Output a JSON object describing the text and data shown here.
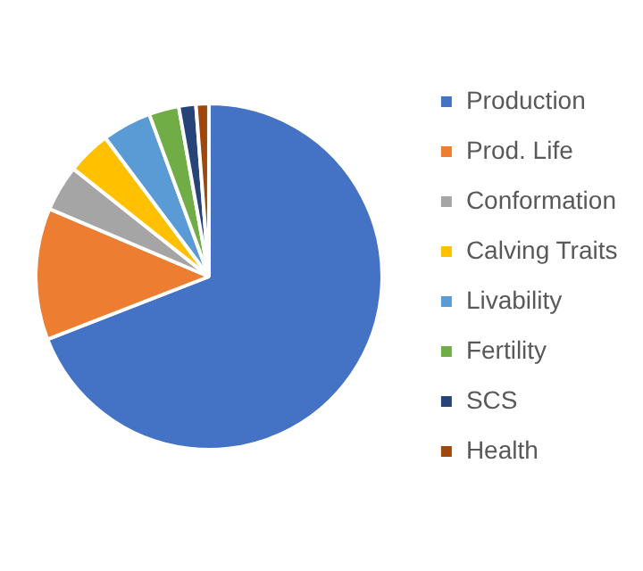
{
  "chart_data": {
    "type": "pie",
    "categories": [
      "Production",
      "Prod. Life",
      "Conformation",
      "Calving Traits",
      "Livability",
      "Fertility",
      "SCS",
      "Health"
    ],
    "values": [
      69.1,
      12.3,
      4.3,
      4.1,
      4.6,
      2.8,
      1.6,
      1.2
    ],
    "colors": [
      "#4472c4",
      "#ed7d31",
      "#a5a5a5",
      "#ffc000",
      "#5b9bd5",
      "#70ad47",
      "#264478",
      "#9e480e"
    ],
    "legend": "right"
  }
}
